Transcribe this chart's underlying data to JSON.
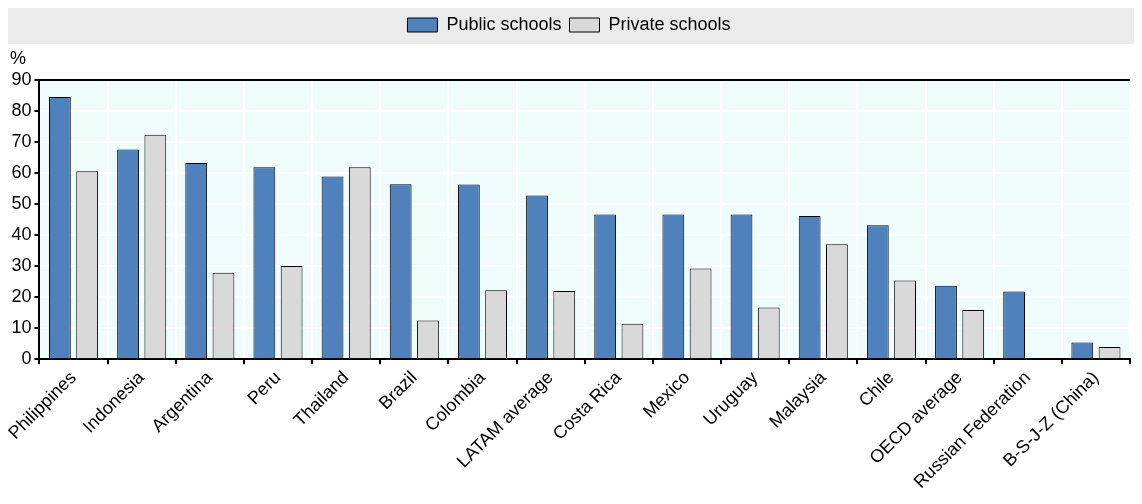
{
  "chart_data": {
    "type": "bar",
    "ylabel": "%",
    "categories": [
      "Philippines",
      "Indonesia",
      "Argentina",
      "Peru",
      "Thailand",
      "Brazil",
      "Colombia",
      "LATAM average",
      "Costa Rica",
      "Mexico",
      "Uruguay",
      "Malaysia",
      "Chile",
      "OECD average",
      "Russian Federation",
      "B-S-J-Z (China)"
    ],
    "series": [
      {
        "name": "Public schools",
        "color": "#4f81bd",
        "values": [
          84.5,
          67.6,
          63.3,
          61.9,
          58.9,
          56.4,
          56.3,
          52.8,
          46.7,
          46.7,
          46.7,
          46.2,
          43.2,
          23.7,
          21.9,
          5.4
        ]
      },
      {
        "name": "Private schools",
        "color": "#d9d9d9",
        "values": [
          60.6,
          72.4,
          27.9,
          30.1,
          61.9,
          12.5,
          22.3,
          22.0,
          11.5,
          29.3,
          16.7,
          37.1,
          25.4,
          15.9,
          null,
          4.0
        ]
      }
    ],
    "ylim": [
      0,
      90
    ],
    "yticks": [
      0,
      10,
      20,
      30,
      40,
      50,
      60,
      70,
      80,
      90
    ],
    "grid": true,
    "legend": "top"
  }
}
